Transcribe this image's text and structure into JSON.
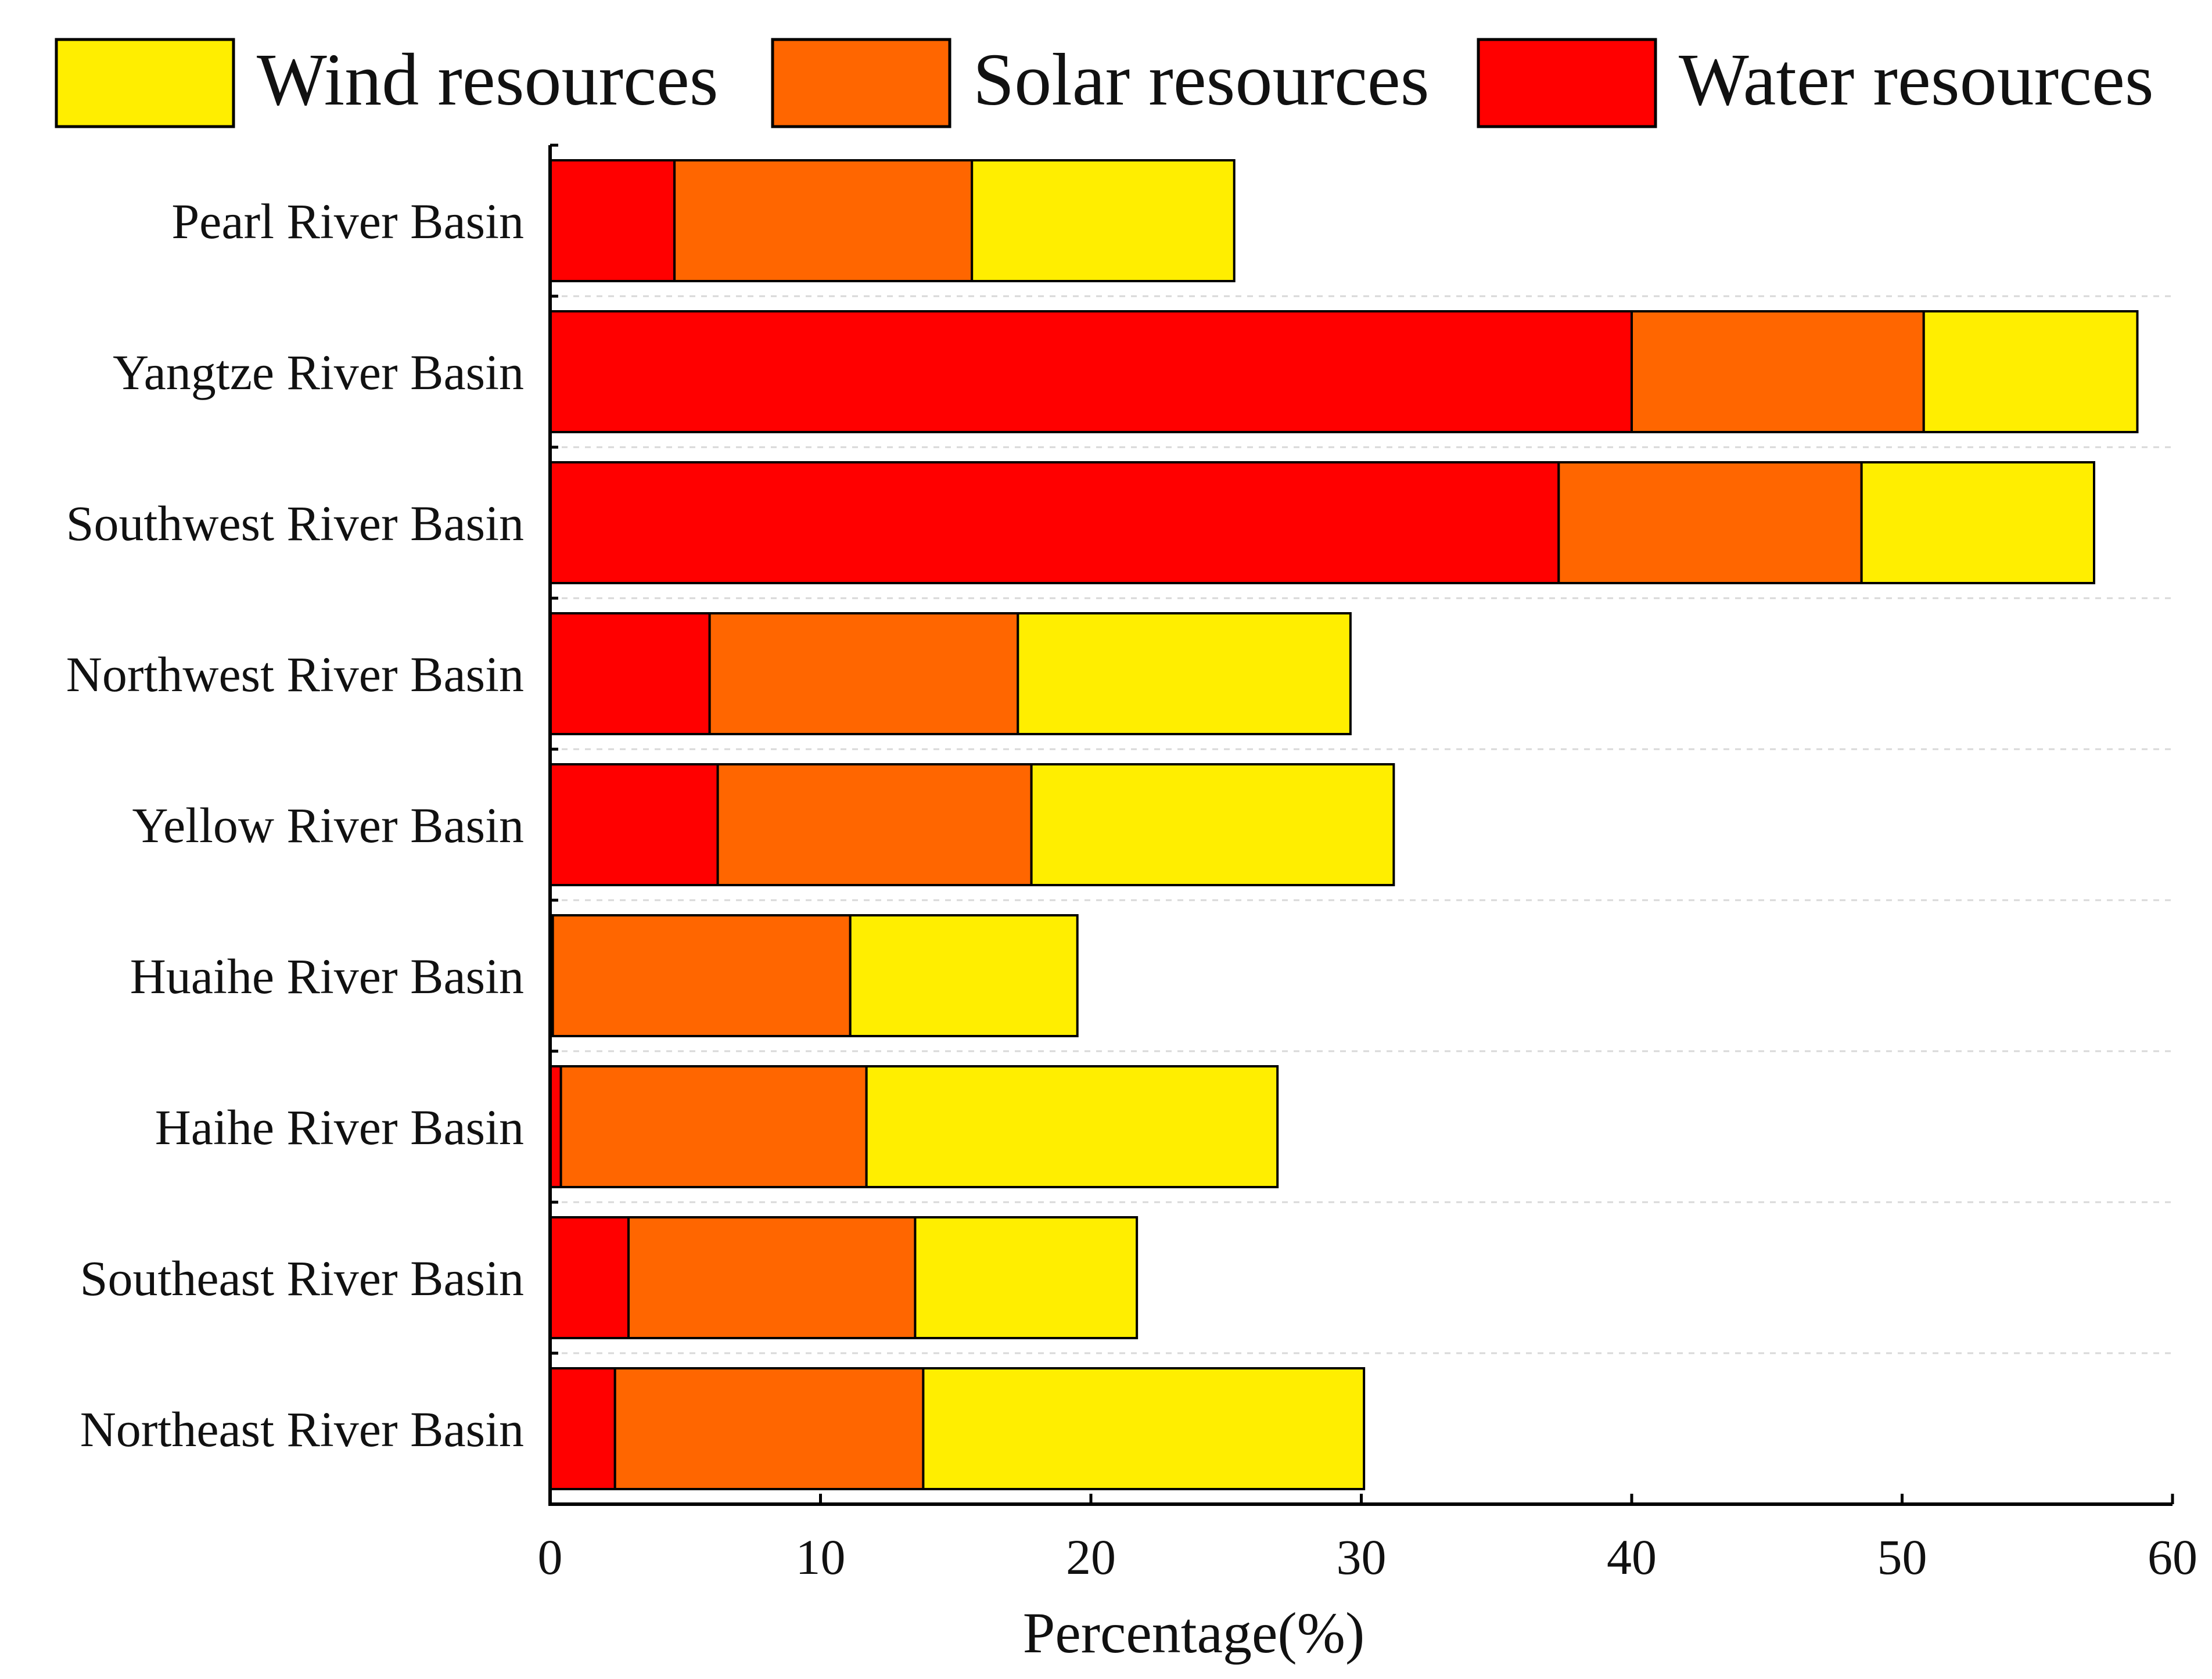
{
  "chart_data": {
    "type": "bar",
    "orientation": "horizontal",
    "stacked": true,
    "title": "",
    "xlabel": "Percentage(%)",
    "ylabel": "",
    "xlim": [
      0,
      60
    ],
    "xticks": [
      0,
      10,
      20,
      30,
      40,
      50,
      60
    ],
    "grid": "dashed horizontal separators",
    "legend_position": "top",
    "categories": [
      "Pearl River Basin",
      "Yangtze River Basin",
      "Southwest River Basin",
      "Northwest River Basin",
      "Yellow River Basin",
      "Huaihe River Basin",
      "Haihe River Basin",
      "Southeast River Basin",
      "Northeast River Basin"
    ],
    "series": [
      {
        "name": "Water resources",
        "color": "#ff0000",
        "values": [
          4.6,
          40.0,
          37.3,
          5.9,
          6.2,
          0.1,
          0.4,
          2.9,
          2.4
        ]
      },
      {
        "name": "Solar resources",
        "color": "#ff6600",
        "values": [
          11.0,
          10.8,
          11.2,
          11.4,
          11.6,
          11.0,
          11.3,
          10.6,
          11.4
        ]
      },
      {
        "name": "Wind resources",
        "color": "#ffee00",
        "values": [
          9.7,
          7.9,
          8.6,
          12.3,
          13.4,
          8.4,
          15.2,
          8.2,
          16.3
        ]
      }
    ],
    "legend_order": [
      "Wind resources",
      "Solar resources",
      "Water resources"
    ]
  }
}
